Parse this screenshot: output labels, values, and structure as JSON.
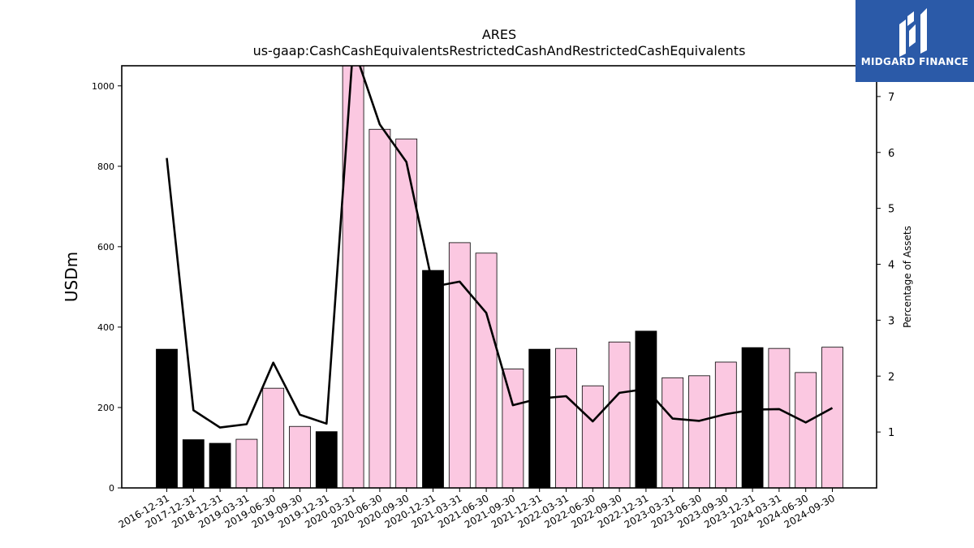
{
  "chart_data": {
    "type": "bar",
    "title": "ARES",
    "subtitle": "us-gaap:CashCashEquivalentsRestrictedCashAndRestrictedCashEquivalents",
    "ylabel": "USDm",
    "y2label": "Percentage of Assets",
    "ylim": [
      0,
      1050
    ],
    "y2lim": [
      0,
      7.55
    ],
    "yticks": [
      0,
      200,
      400,
      600,
      800,
      1000
    ],
    "y2ticks": [
      1,
      2,
      3,
      4,
      5,
      6,
      7
    ],
    "categories": [
      "2016-12-31",
      "2017-12-31",
      "2018-12-31",
      "2019-03-31",
      "2019-06-30",
      "2019-09-30",
      "2019-12-31",
      "2020-03-31",
      "2020-06-30",
      "2020-09-30",
      "2020-12-31",
      "2021-03-31",
      "2021-06-30",
      "2021-09-30",
      "2021-12-31",
      "2022-03-31",
      "2022-06-30",
      "2022-09-30",
      "2022-12-31",
      "2023-03-31",
      "2023-06-30",
      "2023-09-30",
      "2023-12-31",
      "2024-03-31",
      "2024-06-30",
      "2024-09-30"
    ],
    "series": [
      {
        "type": "bar",
        "values": [
          345,
          120,
          111,
          121,
          248,
          153,
          140,
          1060,
          892,
          868,
          541,
          610,
          584,
          296,
          345,
          347,
          254,
          363,
          390,
          274,
          279,
          313,
          349,
          347,
          287,
          350
        ],
        "bar_colors": [
          "#000000",
          "#000000",
          "#000000",
          "#fbc8e1",
          "#fbc8e1",
          "#fbc8e1",
          "#000000",
          "#fbc8e1",
          "#fbc8e1",
          "#fbc8e1",
          "#000000",
          "#fbc8e1",
          "#fbc8e1",
          "#fbc8e1",
          "#000000",
          "#fbc8e1",
          "#fbc8e1",
          "#fbc8e1",
          "#000000",
          "#fbc8e1",
          "#fbc8e1",
          "#fbc8e1",
          "#000000",
          "#fbc8e1",
          "#fbc8e1",
          "#fbc8e1"
        ]
      },
      {
        "type": "line",
        "axis": "right",
        "values": [
          5.9,
          1.39,
          1.08,
          1.14,
          2.24,
          1.31,
          1.15,
          7.9,
          6.5,
          5.83,
          3.6,
          3.69,
          3.13,
          1.48,
          1.6,
          1.64,
          1.19,
          1.7,
          1.77,
          1.24,
          1.2,
          1.32,
          1.4,
          1.41,
          1.17,
          1.43
        ],
        "color": "#000000"
      }
    ],
    "grid": false
  },
  "logo": {
    "text": "MIDGARD FINANCE",
    "bg": "#2b5aa8"
  }
}
